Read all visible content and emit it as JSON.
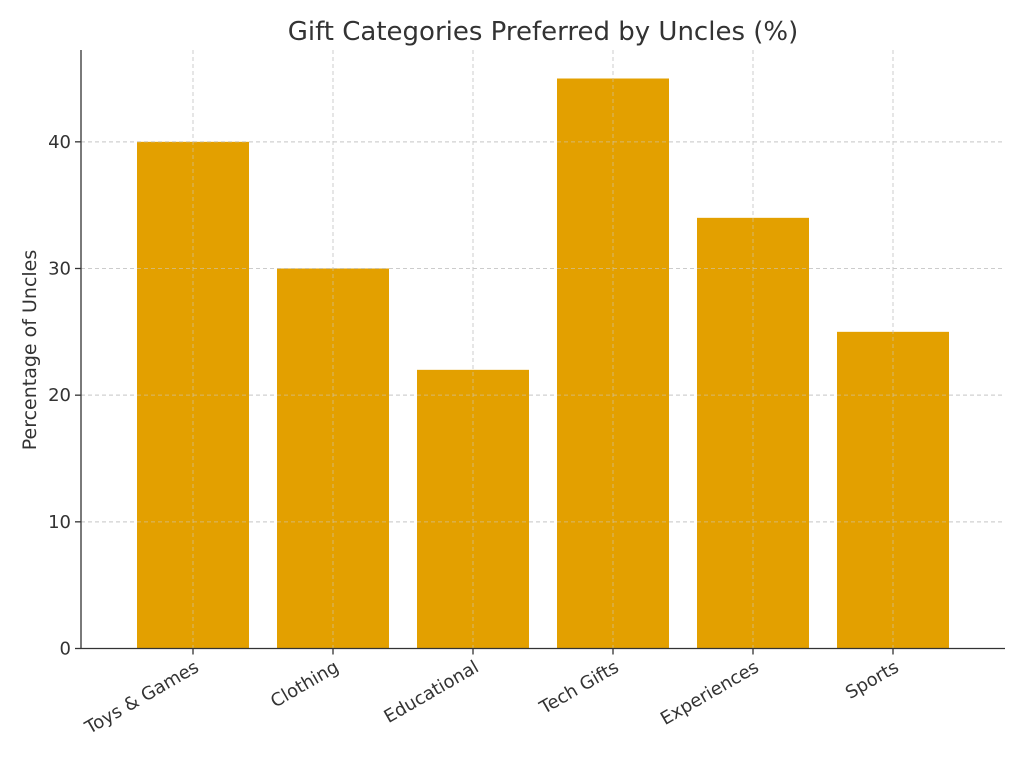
{
  "chart_data": {
    "type": "bar",
    "title": "Gift Categories Preferred by Uncles (%)",
    "xlabel": "",
    "ylabel": "Percentage of Uncles",
    "categories": [
      "Toys & Games",
      "Clothing",
      "Educational",
      "Tech Gifts",
      "Experiences",
      "Sports"
    ],
    "values": [
      40,
      30,
      22,
      45,
      34,
      25
    ],
    "ylim": [
      0,
      47.25
    ],
    "yticks": [
      0,
      10,
      20,
      30,
      40
    ],
    "bar_color": "#E3A000",
    "grid": true,
    "legend": "none"
  }
}
